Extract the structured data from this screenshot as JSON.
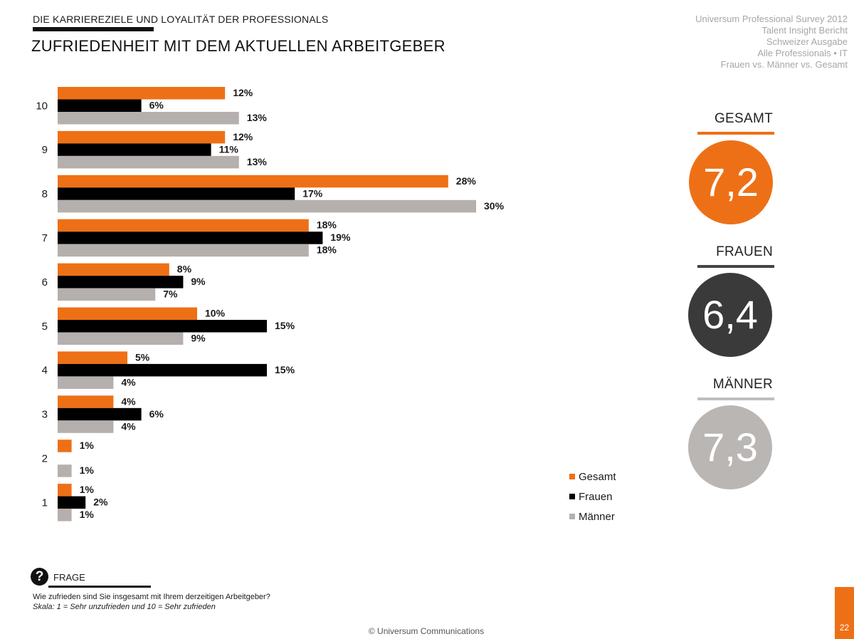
{
  "header": {
    "section_title": "DIE KARRIEREZIELE UND LOYALITÄT DER PROFESSIONALS",
    "main_title": "ZUFRIEDENHEIT MIT DEM AKTUELLEN ARBEITGEBER"
  },
  "meta_lines": [
    "Universum Professional Survey 2012",
    "Talent Insight Bericht",
    "Schweizer Ausgabe",
    "Alle Professionals • IT",
    "Frauen vs. Männer vs. Gesamt"
  ],
  "colors": {
    "gesamt": "#ee7016",
    "frauen": "#000000",
    "maenner": "#b5b0ad",
    "frauen_circle": "#3a3a3a",
    "frauen_rule": "#444444",
    "maenner_circle": "#b9b6b4",
    "maenner_rule": "#c0bebc"
  },
  "chart_data": {
    "type": "bar",
    "orientation": "horizontal",
    "categories": [
      "10",
      "9",
      "8",
      "7",
      "6",
      "5",
      "4",
      "3",
      "2",
      "1"
    ],
    "series": [
      {
        "name": "Gesamt",
        "values": [
          12,
          12,
          28,
          18,
          8,
          10,
          5,
          4,
          1,
          1
        ]
      },
      {
        "name": "Frauen",
        "values": [
          6,
          11,
          17,
          19,
          9,
          15,
          15,
          6,
          null,
          2
        ]
      },
      {
        "name": "Männer",
        "values": [
          13,
          13,
          30,
          18,
          7,
          9,
          4,
          4,
          1,
          1
        ]
      }
    ],
    "value_suffix": "%",
    "legend_position": "bottom-right",
    "grid": false
  },
  "scores": [
    {
      "label": "GESAMT",
      "value": "7,2"
    },
    {
      "label": "FRAUEN",
      "value": "6,4"
    },
    {
      "label": "MÄNNER",
      "value": "7,3"
    }
  ],
  "footer": {
    "frage_icon": "?",
    "frage_label": "FRAGE",
    "question": "Wie zufrieden sind Sie insgesamt mit Ihrem derzeitigen Arbeitgeber?",
    "scale": "Skala: 1 = Sehr unzufrieden und 10 = Sehr zufrieden",
    "copyright": "© Universum Communications",
    "page_number": "22"
  }
}
